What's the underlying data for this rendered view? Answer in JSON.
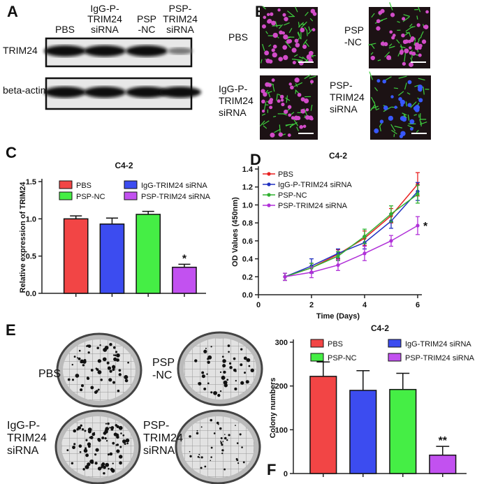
{
  "panels": [
    "A",
    "B",
    "C",
    "D",
    "E",
    "F"
  ],
  "blot": {
    "lanes": [
      [
        "PBS"
      ],
      [
        "IgG-P-",
        "TRIM24",
        "siRNA"
      ],
      [
        "PSP",
        "-NC"
      ],
      [
        "PSP-",
        "TRIM24",
        "siRNA"
      ]
    ],
    "rows": [
      "TRIM24",
      "beta-actin"
    ]
  },
  "microscopy": {
    "labels": [
      [
        "PBS"
      ],
      [
        "PSP",
        "-NC"
      ],
      [
        "IgG-P-",
        "TRIM24",
        "siRNA"
      ],
      [
        "PSP-",
        "TRIM24",
        "siRNA"
      ]
    ]
  },
  "colonies": {
    "labels": [
      [
        "PBS"
      ],
      [
        "PSP",
        "-NC"
      ],
      [
        "IgG-P-",
        "TRIM24",
        "siRNA"
      ],
      [
        "PSP-",
        "TRIM24",
        "siRNA"
      ]
    ]
  },
  "chart_data": [
    {
      "type": "bar",
      "title": "C4-2",
      "ylabel": "Relative expression of TRIM24",
      "annotation": "*",
      "series": [
        {
          "name": "PBS",
          "color": "#f24545",
          "values": [
            1.0
          ],
          "errors": [
            0.04
          ]
        },
        {
          "name": "IgG-TRIM24 siRNA",
          "color": "#3c4cf0",
          "values": [
            0.93
          ],
          "errors": [
            0.08
          ]
        },
        {
          "name": "PSP-NC",
          "color": "#45ee45",
          "values": [
            1.06
          ],
          "errors": [
            0.04
          ]
        },
        {
          "name": "PSP-TRIM24 siRNA",
          "color": "#c251f0",
          "values": [
            0.35
          ],
          "errors": [
            0.04
          ]
        }
      ],
      "ylim": [
        0,
        1.5
      ],
      "yticks": [
        {
          "value": 0,
          "label": "0.0"
        },
        0.5,
        {
          "value": 1,
          "label": "1.0"
        },
        1.5
      ]
    },
    {
      "type": "line",
      "title": "C4-2",
      "xlabel": "Time (Days)",
      "ylabel": "OD Values (450nm)",
      "annotation": "*",
      "x": [
        1,
        2,
        3,
        4,
        5,
        6
      ],
      "series": [
        {
          "name": "PBS",
          "color": "#e82020",
          "values": [
            0.2,
            0.3,
            0.45,
            0.63,
            0.88,
            1.23
          ],
          "errors": [
            0.04,
            0.05,
            0.05,
            0.08,
            0.08,
            0.13
          ]
        },
        {
          "name": "IgG-P-TRIM24 siRNA",
          "color": "#2030c0",
          "values": [
            0.2,
            0.32,
            0.46,
            0.58,
            0.82,
            1.15
          ],
          "errors": [
            0.04,
            0.08,
            0.05,
            0.07,
            0.08,
            0.1
          ]
        },
        {
          "name": "PSP-NC",
          "color": "#30b030",
          "values": [
            0.2,
            0.3,
            0.43,
            0.65,
            0.9,
            1.12
          ],
          "errors": [
            0.04,
            0.05,
            0.05,
            0.08,
            0.09,
            0.1
          ]
        },
        {
          "name": "PSP-TRIM24 siRNA",
          "color": "#b030d8",
          "values": [
            0.2,
            0.25,
            0.33,
            0.46,
            0.6,
            0.77
          ],
          "errors": [
            0.04,
            0.06,
            0.06,
            0.08,
            0.06,
            0.1
          ]
        }
      ],
      "xlim": [
        0,
        6
      ],
      "xticks": [
        0,
        2,
        4,
        6
      ],
      "ylim": [
        0,
        1.4
      ],
      "yticks": [
        {
          "value": 0,
          "label": "0.0"
        },
        0.2,
        0.4,
        0.6,
        0.8,
        {
          "value": 1,
          "label": "1.0"
        },
        1.2,
        1.4
      ]
    },
    {
      "type": "bar",
      "title": "C4-2",
      "ylabel": "Colony numbers",
      "annotation": "**",
      "series": [
        {
          "name": "PBS",
          "color": "#f24545",
          "values": [
            222
          ],
          "errors": [
            33
          ]
        },
        {
          "name": "IgG-TRIM24 siRNA",
          "color": "#3c4cf0",
          "values": [
            190
          ],
          "errors": [
            45
          ]
        },
        {
          "name": "PSP-NC",
          "color": "#45ee45",
          "values": [
            192
          ],
          "errors": [
            37
          ]
        },
        {
          "name": "PSP-TRIM24 siRNA",
          "color": "#c251f0",
          "values": [
            42
          ],
          "errors": [
            20
          ]
        }
      ],
      "ylim": [
        0,
        300
      ],
      "yticks": [
        0,
        100,
        200,
        300
      ]
    }
  ]
}
